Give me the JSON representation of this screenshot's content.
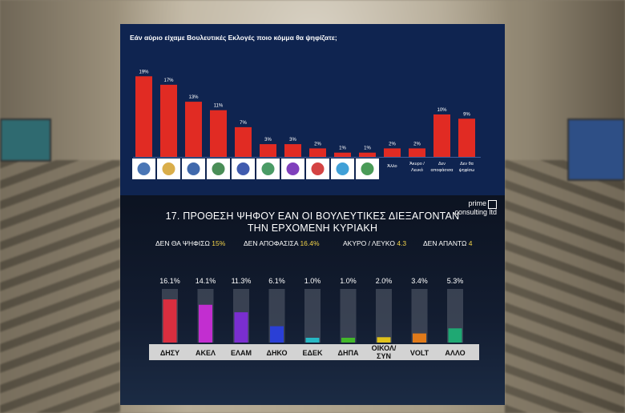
{
  "panel_top": {
    "title": "Εάν αύριο είχαμε Βουλευτικές Εκλογές ποιο κόμμα θα ψηφίζατε;"
  },
  "panel_bottom": {
    "title_line1": "17. ΠΡΟΘΕΣΗ ΨΗΦΟΥ ΕΑΝ ΟΙ ΒΟΥΛΕΥΤΙΚΕΣ ΔΙΕΞΑΓΟΝΤΑΝ",
    "title_line2": "ΤΗΝ ΕΡΧΟΜΕΝΗ ΚΥΡΙΑΚΗ",
    "logo_line1": "prime",
    "logo_line2": "consulting ltd",
    "stats": [
      {
        "label": "ΔΕΝ ΘΑ ΨΗΦΙΣΩ",
        "value": "15%"
      },
      {
        "label": "ΔΕΝ ΑΠΟΦΑΣΙΣΑ",
        "value": "16.4%"
      },
      {
        "label": "ΑΚΥΡΟ / ΛΕΥΚΟ",
        "value": "4.3"
      },
      {
        "label": "ΔΕΝ ΑΠΑΝΤΩ",
        "value": "4"
      }
    ]
  },
  "chart_data": [
    {
      "type": "bar",
      "title": "Εάν αύριο είχαμε Βουλευτικές Εκλογές ποιο κόμμα θα ψηφίζατε;",
      "categories": [
        "logo-1",
        "logo-2",
        "logo-3",
        "Κινή. Οικολόγ. Φυσικών",
        "logo-5",
        "logo-6",
        "Volt",
        "logo-8",
        "logo-9",
        "ΑΝΕΞΑΡΤΗΤΟΙ",
        "Άλλο",
        "Άκυρο / Λευκό",
        "Δεν αποφάσισα",
        "Δεν θα ψηφίσω"
      ],
      "category_labels": [
        "",
        "",
        "",
        "",
        "",
        "",
        "",
        "",
        "",
        "",
        "Άλλο",
        "Άκυρο / Λευκό",
        "Δεν αποφάσισα",
        "Δεν θα ψηφίσω"
      ],
      "values": [
        19,
        17,
        13,
        11,
        7,
        3,
        3,
        2,
        1,
        1,
        2,
        2,
        10,
        9
      ],
      "value_labels": [
        "19%",
        "17%",
        "13%",
        "11%",
        "7%",
        "3%",
        "3%",
        "2%",
        "1%",
        "1%",
        "2%",
        "2%",
        "10%",
        "9%"
      ],
      "logo_count": 10,
      "bar_color": "#e12b23",
      "ylim": [
        0,
        20
      ]
    },
    {
      "type": "bar",
      "title": "17. ΠΡΟΘΕΣΗ ΨΗΦΟΥ ΕΑΝ ΟΙ ΒΟΥΛΕΥΤΙΚΕΣ ΔΙΕΞΑΓΟΝΤΑΝ ΤΗΝ ΕΡΧΟΜΕΝΗ ΚΥΡΙΑΚΗ",
      "categories": [
        "ΔΗΣΥ",
        "ΑΚΕΛ",
        "ΕΛΑΜ",
        "ΔΗΚΟ",
        "ΕΔΕΚ",
        "ΔΗΠΑ",
        "ΟΙΚΟΛ/ ΣΥΝ",
        "VOLT",
        "ΑΛΛΟ"
      ],
      "values": [
        16.1,
        14.1,
        11.3,
        6.1,
        1.0,
        1.0,
        2.0,
        3.4,
        5.3
      ],
      "value_labels": [
        "16.1%",
        "14.1%",
        "11.3%",
        "6.1%",
        "1.0%",
        "1.0%",
        "2.0%",
        "3.4%",
        "5.3%"
      ],
      "colors": [
        "#d92e3f",
        "#c22ed0",
        "#7a2ed0",
        "#2a3fd6",
        "#26b8c4",
        "#43b82a",
        "#e0c21a",
        "#e07a1a",
        "#1fa873"
      ],
      "ylim": [
        0,
        20
      ]
    }
  ]
}
